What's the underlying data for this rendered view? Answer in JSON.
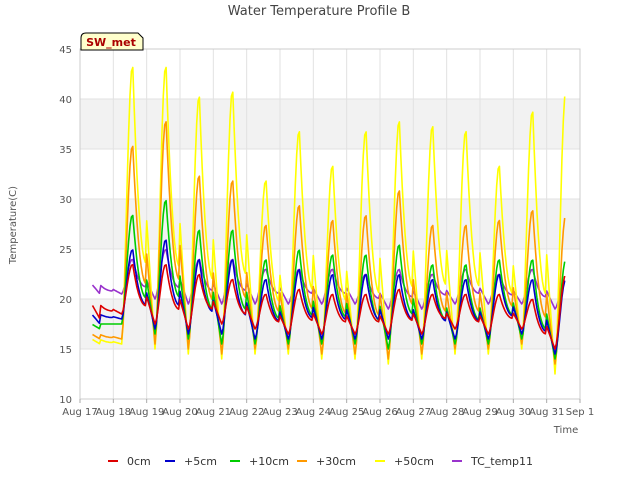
{
  "chart_data": {
    "type": "line",
    "title": "Water Temperature Profile B",
    "xlabel": "Time",
    "ylabel": "Temperature(C)",
    "site_badge": "SW_met",
    "ylim": [
      10,
      45
    ],
    "xlim": [
      "2024-08-17",
      "2024-09-01"
    ],
    "yticks": [
      "10",
      "15",
      "20",
      "25",
      "30",
      "35",
      "40",
      "45"
    ],
    "xticks": [
      "Aug 17",
      "Aug 18",
      "Aug 19",
      "Aug 20",
      "Aug 21",
      "Aug 22",
      "Aug 23",
      "Aug 24",
      "Aug 25",
      "Aug 26",
      "Aug 27",
      "Aug 28",
      "Aug 29",
      "Aug 30",
      "Aug 31",
      "Sep 1"
    ],
    "grid": true,
    "legend_position": "bottom",
    "days": [
      "2024-08-17",
      "2024-08-18",
      "2024-08-19",
      "2024-08-20",
      "2024-08-21",
      "2024-08-22",
      "2024-08-23",
      "2024-08-24",
      "2024-08-25",
      "2024-08-26",
      "2024-08-27",
      "2024-08-28",
      "2024-08-29",
      "2024-08-30",
      "2024-08-31"
    ],
    "series": [
      {
        "name": "0cm",
        "color": "#dd0000",
        "daily_min": [
          18.0,
          18.5,
          17.5,
          17.0,
          17.5,
          17.0,
          16.5,
          16.5,
          16.5,
          16.5,
          16.5,
          17.0,
          16.5,
          17.0,
          15.0
        ],
        "daily_max": [
          19.5,
          23.5,
          23.5,
          22.5,
          22.0,
          20.5,
          21.0,
          20.5,
          20.5,
          21.0,
          20.5,
          20.5,
          20.5,
          20.0,
          22.5
        ],
        "end_value": 18.0
      },
      {
        "name": "+5cm",
        "color": "#0000cc",
        "daily_min": [
          17.5,
          18.0,
          17.0,
          16.5,
          16.5,
          16.0,
          16.0,
          16.0,
          16.0,
          16.0,
          16.0,
          16.0,
          16.0,
          16.5,
          14.5
        ],
        "daily_max": [
          18.5,
          25.0,
          26.0,
          24.0,
          24.0,
          22.0,
          23.0,
          22.5,
          22.5,
          22.5,
          22.0,
          22.0,
          22.5,
          22.0,
          22.0
        ],
        "end_value": 17.5
      },
      {
        "name": "+10cm",
        "color": "#00cc00",
        "daily_min": [
          17.0,
          17.5,
          16.5,
          16.0,
          15.5,
          15.5,
          15.5,
          15.5,
          15.5,
          15.0,
          15.5,
          15.5,
          15.5,
          16.0,
          14.0
        ],
        "daily_max": [
          17.5,
          28.5,
          30.0,
          27.0,
          27.0,
          24.0,
          25.0,
          24.5,
          24.5,
          25.5,
          23.5,
          23.5,
          24.0,
          24.0,
          24.0
        ],
        "end_value": 17.5
      },
      {
        "name": "+30cm",
        "color": "#ff9900",
        "daily_min": [
          16.0,
          16.0,
          15.5,
          15.0,
          14.5,
          15.0,
          15.0,
          14.5,
          14.5,
          14.0,
          14.5,
          15.0,
          15.0,
          15.5,
          13.5
        ],
        "daily_max": [
          16.5,
          35.5,
          38.0,
          32.5,
          32.0,
          27.5,
          29.5,
          28.0,
          28.5,
          31.0,
          27.5,
          27.5,
          28.0,
          29.0,
          28.5
        ],
        "end_value": 16.5
      },
      {
        "name": "+50cm",
        "color": "#ffff00",
        "daily_min": [
          15.5,
          15.5,
          15.0,
          14.5,
          14.0,
          14.5,
          14.5,
          14.0,
          14.0,
          13.5,
          14.0,
          14.5,
          14.5,
          15.0,
          12.5
        ],
        "daily_max": [
          16.0,
          43.5,
          43.5,
          40.5,
          41.0,
          32.0,
          37.0,
          33.5,
          37.0,
          38.0,
          37.5,
          37.0,
          33.5,
          39.0,
          41.0
        ],
        "end_value": 16.0
      },
      {
        "name": "TC_temp11",
        "color": "#9933cc",
        "daily_min": [
          20.5,
          20.5,
          20.0,
          19.5,
          19.5,
          19.5,
          19.5,
          19.5,
          19.5,
          19.0,
          19.0,
          19.5,
          19.5,
          19.5,
          19.0
        ],
        "daily_max": [
          21.5,
          24.0,
          25.0,
          24.0,
          24.0,
          23.0,
          23.0,
          23.0,
          22.5,
          23.0,
          22.5,
          23.0,
          22.5,
          23.0,
          22.0
        ],
        "end_value": 20.0
      }
    ]
  }
}
